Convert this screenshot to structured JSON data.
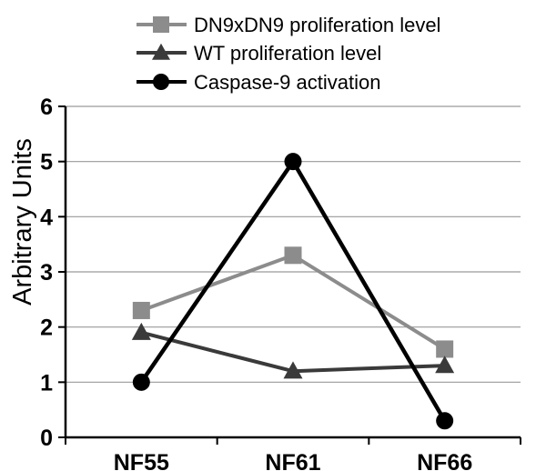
{
  "chart_data": {
    "type": "line",
    "title": "",
    "xlabel": "",
    "ylabel": "Arbitrary Units",
    "categories": [
      "NF55",
      "NF61",
      "NF66"
    ],
    "ylim": [
      0,
      6
    ],
    "yticks": [
      0,
      1,
      2,
      3,
      4,
      5,
      6
    ],
    "grid": true,
    "legend_position": "top",
    "series": [
      {
        "name": "DN9xDN9 proliferation level",
        "values": [
          2.3,
          3.3,
          1.6
        ],
        "color": "#8c8c8c",
        "marker": "square"
      },
      {
        "name": "WT proliferation level",
        "values": [
          1.9,
          1.2,
          1.3
        ],
        "color": "#3a3a3a",
        "marker": "triangle"
      },
      {
        "name": "Caspase-9 activation",
        "values": [
          1.0,
          5.0,
          0.3
        ],
        "color": "#000000",
        "marker": "circle"
      }
    ]
  }
}
